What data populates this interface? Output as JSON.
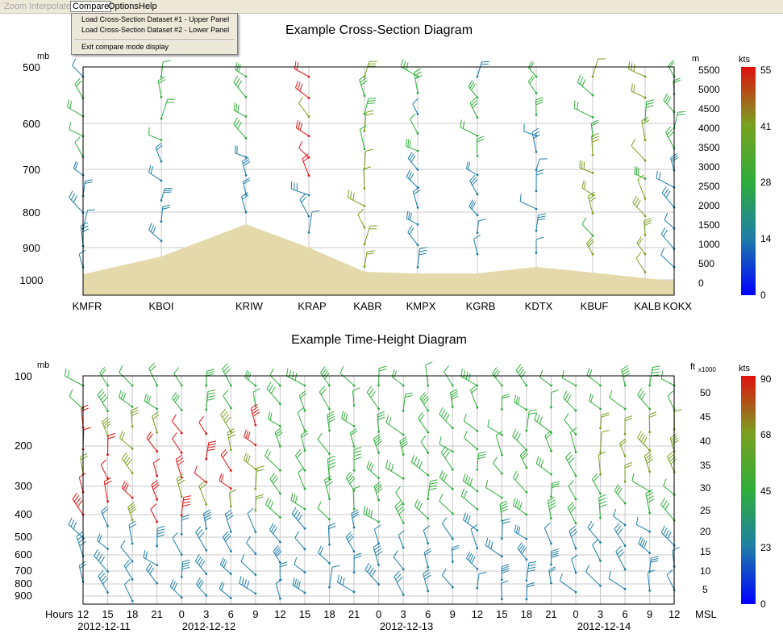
{
  "menubar": {
    "items": [
      {
        "label": "Zoom",
        "state": "disabled"
      },
      {
        "label": "Interpolate",
        "state": "disabled"
      },
      {
        "label": "Compare",
        "state": "open"
      },
      {
        "label": "Options",
        "state": "enabled"
      },
      {
        "label": "Help",
        "state": "enabled"
      }
    ]
  },
  "compare_menu": {
    "items": [
      "Load Cross-Section Dataset #1 - Upper Panel",
      "Load Cross-Section Dataset #2 - Lower Panel",
      "Exit compare mode display"
    ]
  },
  "colors": {
    "terrain": "#e4d9aa",
    "barb_scale": [
      "#0000ff",
      "#1e7ea6",
      "#2fae3a",
      "#7aa020",
      "#e01010"
    ]
  },
  "upper_panel": {
    "title": "Example Cross-Section Diagram",
    "left_unit": "mb",
    "right_unit": "m",
    "colorbar_unit": "kts",
    "pressure_ticks": [
      "500",
      "600",
      "700",
      "800",
      "900",
      "1000"
    ],
    "height_ticks": [
      "5500",
      "5000",
      "4500",
      "4000",
      "3500",
      "3000",
      "2500",
      "2000",
      "1500",
      "1000",
      "500",
      "0"
    ],
    "colorbar_ticks": [
      "55",
      "41",
      "28",
      "14",
      "0"
    ],
    "stations": [
      "KMFR",
      "KBOI",
      "KRIW",
      "KRAP",
      "KABR",
      "KMPX",
      "KGRB",
      "KDTX",
      "KBUF",
      "KALB",
      "KOKX"
    ]
  },
  "lower_panel": {
    "title": "Example Time-Height Diagram",
    "left_unit": "mb",
    "right_unit": "ft",
    "right_unit_suffix": "x1000",
    "colorbar_unit": "kts",
    "pressure_ticks": [
      "100",
      "200",
      "300",
      "400",
      "500",
      "600",
      "700",
      "800",
      "900"
    ],
    "height_ticks": [
      "50",
      "45",
      "40",
      "35",
      "30",
      "25",
      "20",
      "15",
      "10",
      "5"
    ],
    "colorbar_ticks": [
      "90",
      "68",
      "45",
      "23",
      "0"
    ],
    "hours_label": "Hours",
    "msl_label": "MSL",
    "hours": [
      "12",
      "15",
      "18",
      "21",
      "0",
      "3",
      "6",
      "9",
      "12",
      "15",
      "18",
      "21",
      "0",
      "3",
      "6",
      "9",
      "12",
      "15",
      "18",
      "21",
      "0",
      "3",
      "6",
      "9",
      "12"
    ],
    "dates": [
      "2012-12-11",
      "2012-12-12",
      "2012-12-13",
      "2012-12-14"
    ]
  }
}
